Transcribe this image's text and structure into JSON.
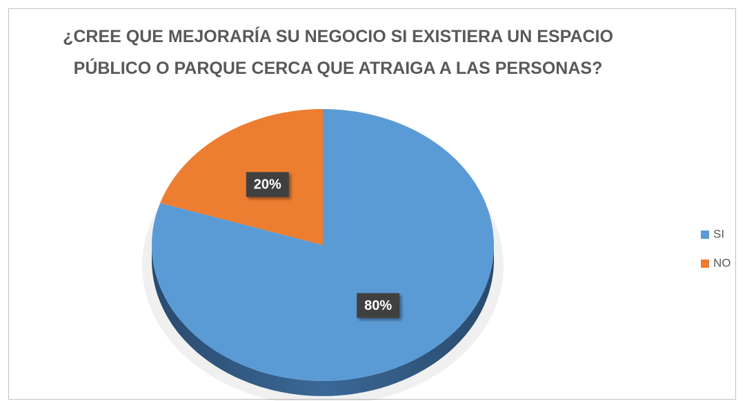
{
  "chart_data": {
    "type": "pie",
    "title": "¿CREE QUE MEJORARÍA SU NEGOCIO SI EXISTIERA UN ESPACIO PÚBLICO O PARQUE CERCA QUE ATRAIGA A LAS PERSONAS?",
    "categories": [
      "SI",
      "NO"
    ],
    "values": [
      80,
      20
    ],
    "value_labels": [
      "80%",
      "20%"
    ],
    "colors": [
      "#5b9bd5",
      "#ed7d31"
    ],
    "legend": "right"
  }
}
